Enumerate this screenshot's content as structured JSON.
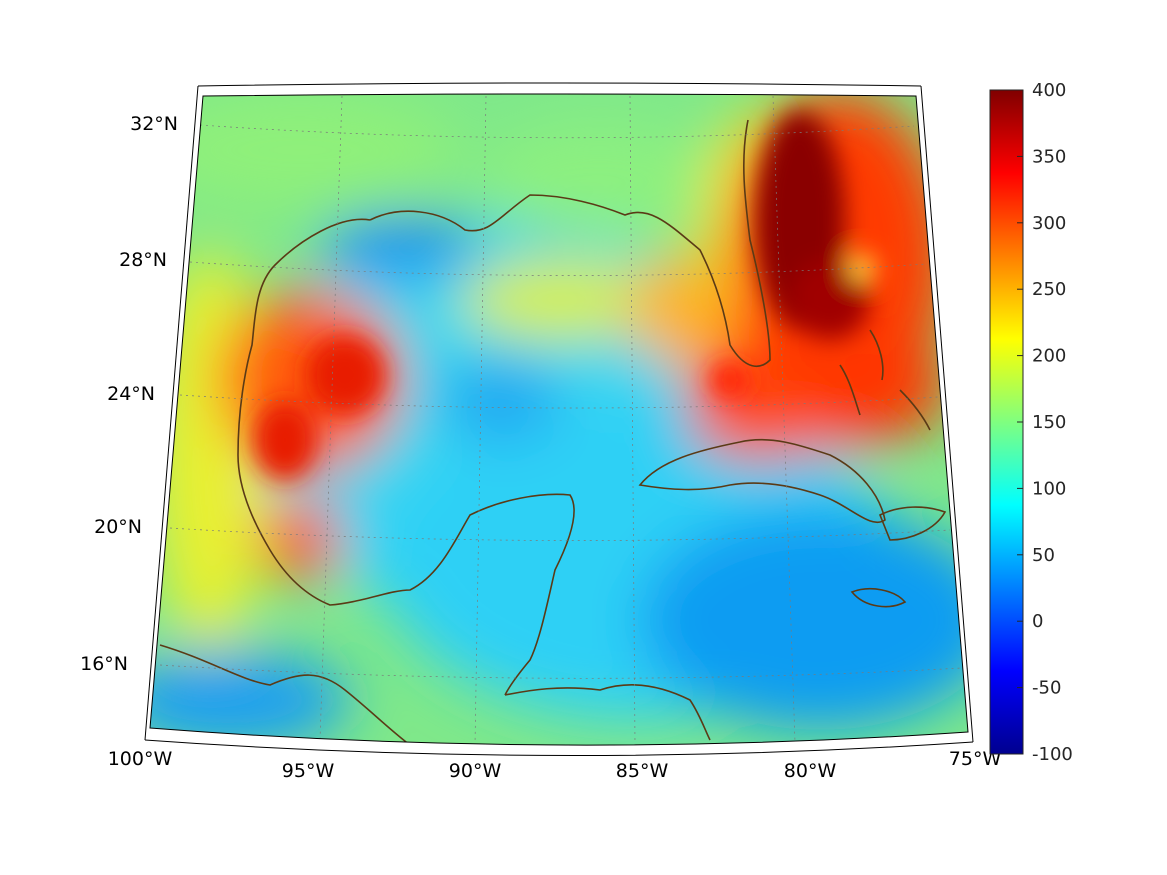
{
  "map": {
    "projection": "lambert-conic",
    "lon_range": [
      -100,
      -75
    ],
    "lat_range": [
      14,
      33
    ],
    "lon_labels": [
      "100°W",
      "95°W",
      "90°W",
      "85°W",
      "80°W",
      "75°W"
    ],
    "lat_labels": [
      "16°N",
      "20°N",
      "24°N",
      "28°N",
      "32°N"
    ],
    "grid": "dotted",
    "coastline_color": "#5a3a16",
    "field_description": "scalar field over Gulf of Mexico and Caribbean"
  },
  "colorbar": {
    "colormap": "jet",
    "min": -100,
    "max": 400,
    "labels": [
      "400",
      "350",
      "300",
      "250",
      "200",
      "150",
      "100",
      "50",
      "0",
      "-50",
      "-100"
    ],
    "placement": "right"
  }
}
